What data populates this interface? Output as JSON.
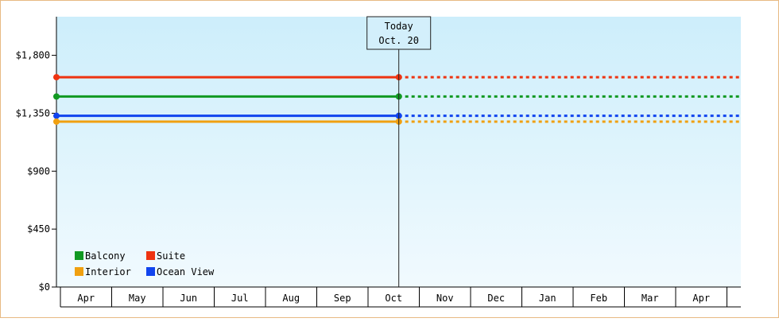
{
  "chart_data": {
    "type": "line",
    "title": "",
    "xlabel": "",
    "ylabel": "",
    "y_tick_labels": [
      "$0",
      "$450",
      "$900",
      "$1,350",
      "$1,800"
    ],
    "y_ticks": [
      0,
      450,
      900,
      1350,
      1800
    ],
    "ylim": [
      0,
      2100
    ],
    "months": [
      "Apr",
      "May",
      "Jun",
      "Jul",
      "Aug",
      "Sep",
      "Oct",
      "Nov",
      "Dec",
      "Jan",
      "Feb",
      "Mar",
      "Apr"
    ],
    "today": {
      "label": "Today",
      "date": "Oct. 20",
      "position_months": 6.6
    },
    "series": [
      {
        "name": "Suite",
        "color": "#ee3311",
        "values": [
          1630,
          1630
        ]
      },
      {
        "name": "Balcony",
        "color": "#119922",
        "values": [
          1480,
          1480
        ]
      },
      {
        "name": "Ocean View",
        "color": "#1144ee",
        "values": [
          1330,
          1330
        ]
      },
      {
        "name": "Interior",
        "color": "#f0a010",
        "values": [
          1285,
          1285
        ]
      }
    ],
    "legend": {
      "placement": "bottom-left",
      "rows": [
        [
          "Balcony",
          "Suite"
        ],
        [
          "Interior",
          "Ocean View"
        ]
      ]
    },
    "projection_style": "dotted after today",
    "background": {
      "top": "#cdeefb",
      "bottom": "#f1fafe"
    },
    "grid": false
  }
}
